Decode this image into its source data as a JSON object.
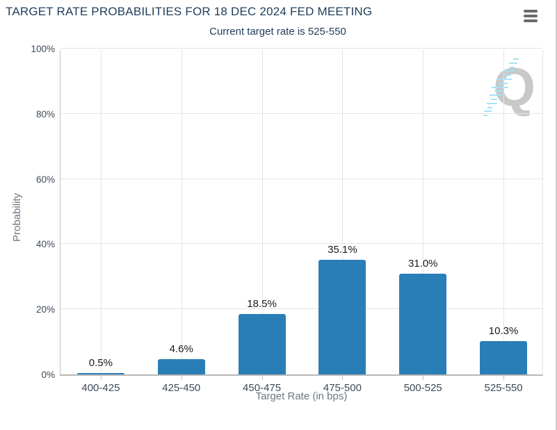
{
  "header": {
    "title": "TARGET RATE PROBABILITIES FOR 18 DEC 2024 FED MEETING",
    "subtitle": "Current target rate is 525-550",
    "menu_icon": "hamburger-icon"
  },
  "chart_data": {
    "type": "bar",
    "title": "TARGET RATE PROBABILITIES FOR 18 DEC 2024 FED MEETING",
    "subtitle": "Current target rate is 525-550",
    "categories": [
      "400-425",
      "425-450",
      "450-475",
      "475-500",
      "500-525",
      "525-550"
    ],
    "values": [
      0.5,
      4.6,
      18.5,
      35.1,
      31.0,
      10.3
    ],
    "value_labels": [
      "0.5%",
      "4.6%",
      "18.5%",
      "35.1%",
      "31.0%",
      "10.3%"
    ],
    "xlabel": "Target Rate (in bps)",
    "ylabel": "Probability",
    "ylim": [
      0,
      100
    ],
    "yticks": [
      "0%",
      "20%",
      "40%",
      "60%",
      "80%",
      "100%"
    ],
    "grid": true,
    "legend": false,
    "bar_color": "#2a7eb8"
  },
  "watermark": {
    "letter": "Q"
  },
  "colors": {
    "title_navy": "#1e3c5a",
    "bar_blue": "#2a7eb8",
    "tick_text": "#3d4a59",
    "axis_title_gray": "#6b7680",
    "watermark_gray": "#c8c8c8",
    "watermark_blue": "#a6e1f6"
  }
}
